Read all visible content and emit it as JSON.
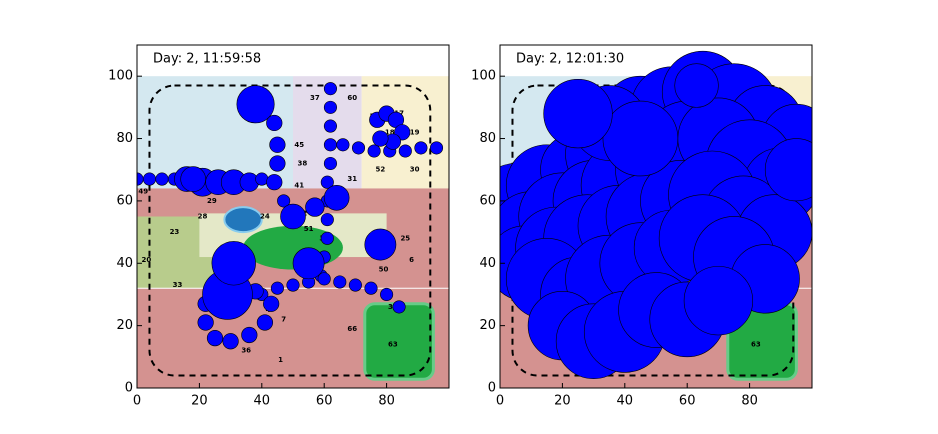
{
  "chart_data": [
    {
      "type": "bubble",
      "title": "Day: 2, 11:59:58",
      "color": "#0000ff",
      "xlim": [
        0,
        100
      ],
      "ylim": [
        0,
        110
      ],
      "xticks": [
        0,
        20,
        40,
        60,
        80
      ],
      "yticks": [
        0,
        20,
        40,
        60,
        80,
        100
      ],
      "x": [
        0,
        4,
        8,
        12,
        16,
        21,
        26,
        31,
        36,
        40,
        38,
        44,
        45,
        45,
        44,
        47,
        62,
        62,
        62,
        62,
        62,
        61,
        61,
        61,
        61,
        60,
        59,
        66,
        71,
        76,
        81,
        86,
        91,
        96,
        77,
        80,
        83,
        85,
        82,
        78,
        40,
        45,
        50,
        55,
        60,
        65,
        70,
        75,
        80,
        84,
        22,
        22,
        25,
        30,
        36,
        41,
        43,
        38,
        30,
        25,
        29,
        31,
        55,
        78,
        64,
        18,
        50,
        57
      ],
      "y": [
        67,
        67,
        67,
        67,
        67,
        66,
        66,
        66,
        66,
        67,
        91,
        85,
        78,
        72,
        66,
        60,
        96,
        90,
        84,
        78,
        72,
        66,
        60,
        54,
        48,
        42,
        36,
        78,
        77,
        76,
        76,
        76,
        77,
        77,
        86,
        88,
        86,
        82,
        79,
        80,
        30,
        32,
        33,
        34,
        35,
        34,
        33,
        32,
        30,
        26,
        27,
        21,
        16,
        15,
        17,
        21,
        27,
        31,
        32,
        30,
        30,
        40,
        40,
        46,
        61,
        67,
        55,
        58
      ],
      "sizes": [
        2,
        2,
        2,
        2,
        4,
        4.5,
        4,
        4,
        3,
        2,
        6,
        2.5,
        2.5,
        2.5,
        2.5,
        2,
        2,
        2,
        2,
        2,
        2,
        2,
        2,
        2,
        2,
        2,
        2,
        2,
        2,
        2,
        2,
        2,
        2,
        2,
        2.5,
        2.5,
        2.5,
        2.5,
        2.5,
        2.5,
        2,
        2,
        2,
        2,
        2,
        2,
        2,
        2,
        2,
        2,
        2.5,
        2.5,
        2.5,
        2.5,
        2.5,
        2.5,
        2.5,
        2.5,
        2.5,
        2.5,
        8,
        7,
        5,
        5,
        4,
        4,
        4,
        3
      ],
      "map_labels": [
        "37",
        "60",
        "16",
        "15",
        "17",
        "18",
        "19",
        "45",
        "38",
        "41",
        "42",
        "31",
        "52",
        "30",
        "21",
        "49",
        "29",
        "28",
        "23",
        "24",
        "51",
        "35",
        "25",
        "20",
        "33",
        "50",
        "6",
        "4",
        "34",
        "5",
        "7",
        "66",
        "63",
        "36",
        "1"
      ]
    },
    {
      "type": "bubble",
      "title": "Day: 2, 12:01:30",
      "color": "#0000ff",
      "xlim": [
        0,
        100
      ],
      "ylim": [
        0,
        110
      ],
      "xticks": [
        0,
        20,
        40,
        60,
        80
      ],
      "yticks": [
        0,
        20,
        40,
        60,
        80,
        100
      ],
      "x": [
        5,
        15,
        25,
        35,
        45,
        55,
        65,
        75,
        85,
        95,
        10,
        20,
        30,
        40,
        50,
        60,
        70,
        80,
        90,
        8,
        18,
        28,
        38,
        48,
        58,
        68,
        78,
        88,
        15,
        25,
        35,
        45,
        55,
        65,
        75,
        85,
        20,
        30,
        40,
        50,
        60,
        70,
        35,
        45,
        63,
        95,
        25
      ],
      "y": [
        60,
        65,
        70,
        75,
        88,
        90,
        95,
        90,
        85,
        80,
        50,
        55,
        60,
        65,
        70,
        78,
        80,
        72,
        65,
        40,
        45,
        48,
        52,
        55,
        60,
        62,
        55,
        50,
        35,
        30,
        35,
        40,
        45,
        48,
        42,
        35,
        20,
        15,
        18,
        25,
        22,
        28,
        85,
        80,
        97,
        70,
        88
      ],
      "sizes": [
        12,
        13,
        12,
        14,
        12,
        13,
        13,
        14,
        12,
        11,
        13,
        14,
        13,
        14,
        13,
        14,
        13,
        14,
        12,
        12,
        13,
        14,
        13,
        14,
        13,
        14,
        13,
        12,
        13,
        12,
        14,
        13,
        12,
        14,
        13,
        11,
        11,
        12,
        13,
        12,
        12,
        11,
        12,
        12,
        7,
        10,
        11
      ],
      "map_labels": [
        "63"
      ]
    }
  ]
}
